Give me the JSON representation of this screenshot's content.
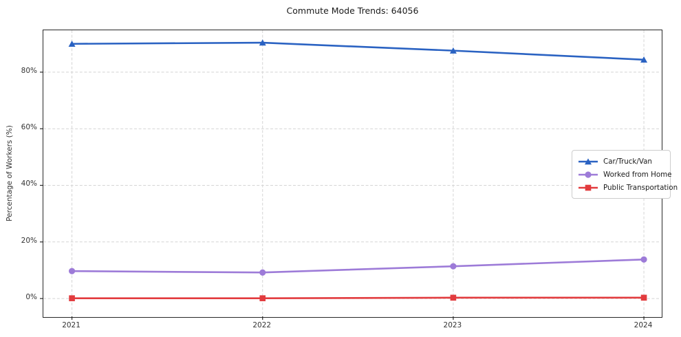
{
  "chart_data": {
    "type": "line",
    "title": "Commute Mode Trends: 64056",
    "xlabel": "",
    "ylabel": "Percentage of Workers (%)",
    "x": [
      2021,
      2022,
      2023,
      2024
    ],
    "x_tick_labels": [
      "2021",
      "2022",
      "2023",
      "2024"
    ],
    "xlim": [
      2020.85,
      2024.09
    ],
    "y_ticks": [
      0,
      20,
      40,
      60,
      80
    ],
    "y_tick_labels": [
      "0%",
      "20%",
      "40%",
      "60%",
      "80%"
    ],
    "ylim": [
      -6.3,
      94.8
    ],
    "grid": true,
    "grid_style": "dashed",
    "legend_position": "center right",
    "series": [
      {
        "name": "Car/Truck/Van",
        "marker": "triangle",
        "color": "#2a62c2",
        "values": [
          90.0,
          90.4,
          87.6,
          84.4
        ]
      },
      {
        "name": "Worked from Home",
        "marker": "circle",
        "color": "#9d7bd8",
        "values": [
          9.7,
          9.2,
          11.4,
          13.8
        ]
      },
      {
        "name": "Public Transportation",
        "marker": "square",
        "color": "#e23b3e",
        "values": [
          0.1,
          0.1,
          0.3,
          0.3
        ]
      }
    ],
    "colors": {
      "gridline": "#d4d4d4",
      "spine": "#262626",
      "tick_text": "#333333",
      "title_text": "#1a1a1a",
      "legend_border": "#cccccc"
    }
  }
}
